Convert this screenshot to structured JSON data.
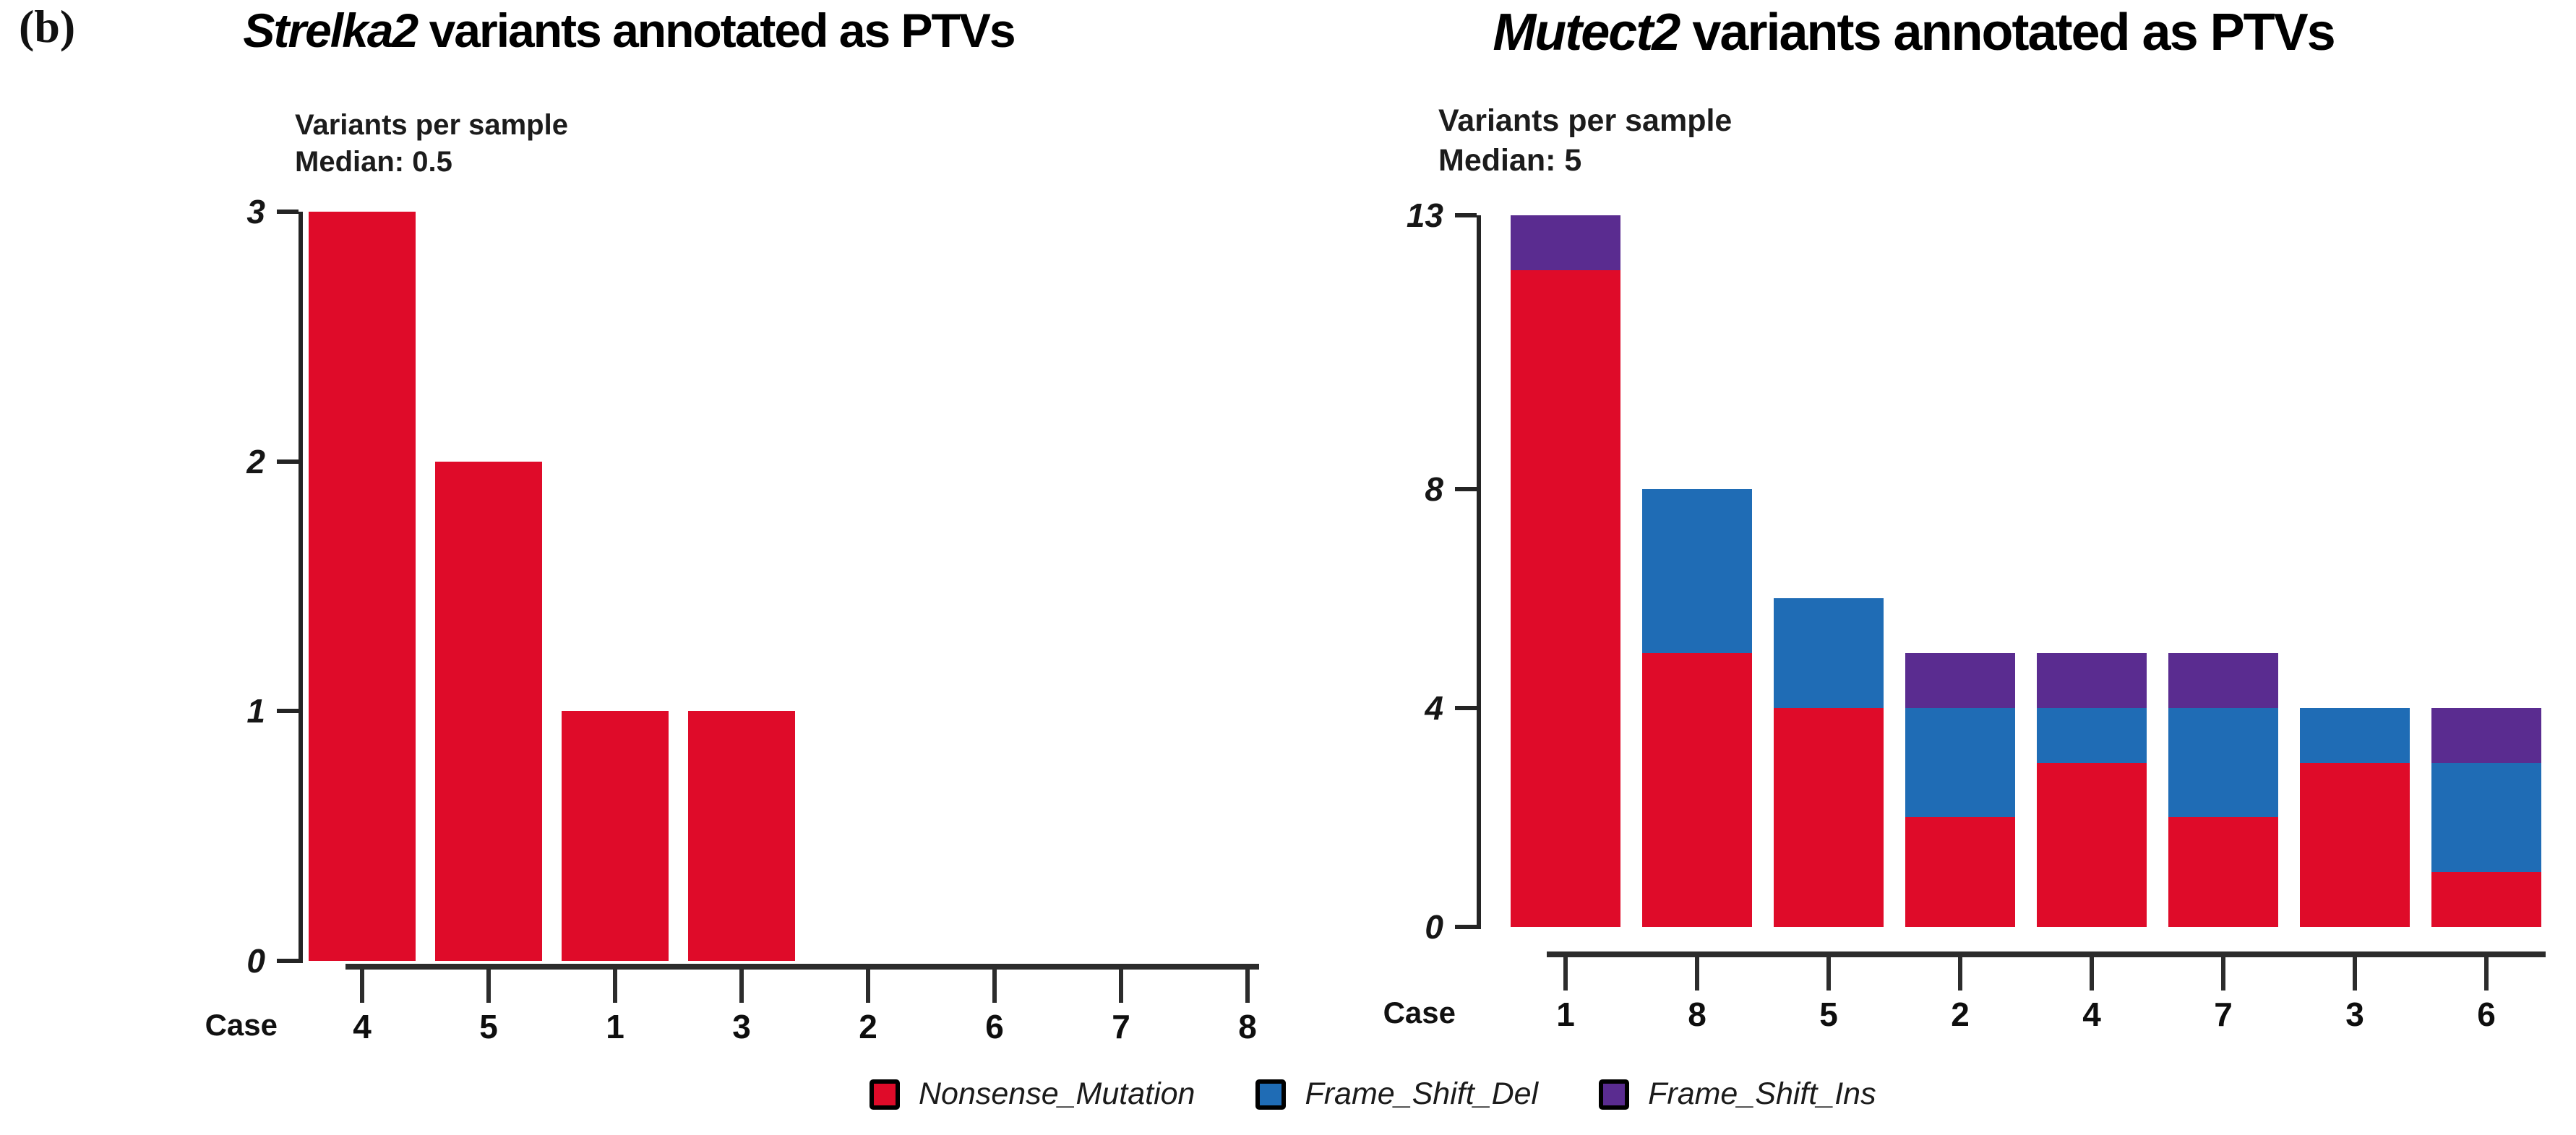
{
  "panel_label": "(b)",
  "legend": [
    {
      "label": "Nonsense_Mutation",
      "color": "#df0b29"
    },
    {
      "label": "Frame_Shift_Del",
      "color": "#1f6cb5"
    },
    {
      "label": "Frame_Shift_Ins",
      "color": "#5a2c90"
    }
  ],
  "chart_data": [
    {
      "type": "bar",
      "title": "Strelka2 variants annotated as PTVs",
      "title_caller": "Strelka2",
      "title_suffix": " variants annotated as PTVs",
      "subtitle": "Variants per sample",
      "median_label": "Median: 0.5",
      "median": 0.5,
      "xlabel": "Case",
      "ylabel": "",
      "categories": [
        "4",
        "5",
        "1",
        "3",
        "2",
        "6",
        "7",
        "8"
      ],
      "series": [
        {
          "name": "Nonsense_Mutation",
          "color": "#df0b29",
          "values": [
            3,
            2,
            1,
            1,
            0,
            0,
            0,
            0
          ]
        }
      ],
      "yticks": [
        0,
        1,
        2,
        3
      ],
      "ylim": [
        0,
        3
      ],
      "grid": false,
      "legend_position": "shared-bottom"
    },
    {
      "type": "stacked-bar",
      "title": "Mutect2 variants annotated as PTVs",
      "title_caller": "Mutect2",
      "title_suffix": " variants annotated as PTVs",
      "subtitle": "Variants per sample",
      "median_label": "Median: 5",
      "median": 5,
      "xlabel": "Case",
      "ylabel": "",
      "categories": [
        "1",
        "8",
        "5",
        "2",
        "4",
        "7",
        "3",
        "6"
      ],
      "series": [
        {
          "name": "Nonsense_Mutation",
          "color": "#df0b29",
          "values": [
            12,
            5,
            4,
            2,
            3,
            2,
            3,
            1
          ]
        },
        {
          "name": "Frame_Shift_Del",
          "color": "#1f6cb5",
          "values": [
            0,
            3,
            2,
            2,
            1,
            2,
            1,
            2
          ]
        },
        {
          "name": "Frame_Shift_Ins",
          "color": "#5a2c90",
          "values": [
            1,
            0,
            0,
            1,
            1,
            1,
            0,
            1
          ]
        }
      ],
      "yticks": [
        0,
        4,
        8,
        13
      ],
      "ylim": [
        0,
        13
      ],
      "grid": false,
      "legend_position": "shared-bottom"
    }
  ]
}
